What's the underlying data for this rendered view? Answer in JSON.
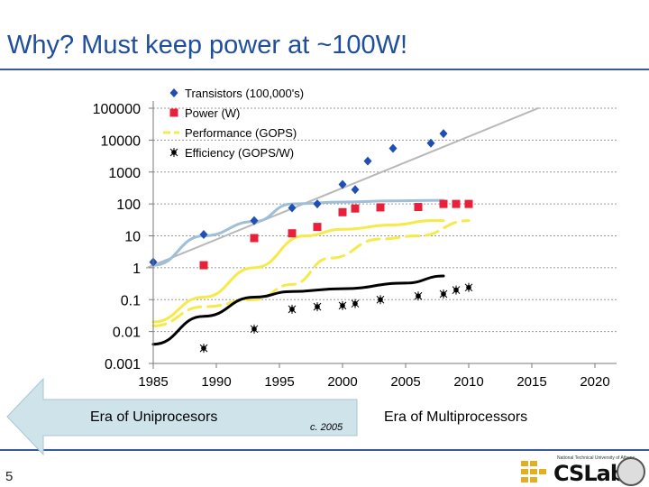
{
  "slide": {
    "title": "Why? Must keep power at ~100W!",
    "page_number": "5",
    "era_left": "Era of Uniprocesors",
    "era_right": "Era of Multiprocessors",
    "circa": "c. 2005",
    "logo_text": "CSLab",
    "logo_caption": "National Technical University of Athens"
  },
  "colors": {
    "title": "#1f4e9c",
    "transistors": "#1f4eb4",
    "power": "#e8203a",
    "performance": "#f5ea4a",
    "efficiency": "#000000",
    "trend_gray": "#b8b8b8",
    "trend_blue": "#9fbfd8",
    "arrow_fill": "#cfe3ea"
  },
  "chart_data": {
    "type": "scatter",
    "y_scale": "log",
    "ylim": [
      0.001,
      100000
    ],
    "xlim": [
      1985,
      2020
    ],
    "x_ticks": [
      "1985",
      "1990",
      "1995",
      "2000",
      "2005",
      "2010",
      "2015",
      "2020"
    ],
    "y_ticks": [
      "100000",
      "10000",
      "1000",
      "100",
      "10",
      "1",
      "0.1",
      "0.01",
      "0.001"
    ],
    "legend_position": "top-center",
    "series": [
      {
        "name": "Transistors (100,000's)",
        "marker": "diamond",
        "color": "#1f4eb4",
        "x": [
          1985,
          1989,
          1993,
          1996,
          1998,
          2000,
          2001,
          2002,
          2004,
          2007,
          2008
        ],
        "y": [
          1.5,
          11,
          30,
          75,
          100,
          410,
          280,
          2200,
          5500,
          8000,
          16000
        ]
      },
      {
        "name": "Power (W)",
        "marker": "square",
        "color": "#e8203a",
        "x": [
          1989,
          1993,
          1996,
          1998,
          2000,
          2001,
          2003,
          2006,
          2008,
          2009,
          2010
        ],
        "y": [
          1.2,
          8.5,
          12,
          19,
          55,
          72,
          78,
          80,
          100,
          100,
          100
        ]
      },
      {
        "name": "Performance (GOPS)",
        "marker": "line",
        "color": "#f5ea4a",
        "x": [],
        "y": []
      },
      {
        "name": "Efficiency (GOPS/W)",
        "marker": "star",
        "color": "#000000",
        "x": [
          1989,
          1993,
          1996,
          1998,
          2000,
          2001,
          2003,
          2006,
          2008,
          2009,
          2010
        ],
        "y": [
          0.003,
          0.012,
          0.05,
          0.06,
          0.065,
          0.075,
          0.1,
          0.13,
          0.15,
          0.2,
          0.24
        ]
      }
    ],
    "trend_lines": [
      {
        "color": "#b8b8b8",
        "width": 2,
        "x": [
          1984.5,
          2015.5
        ],
        "y": [
          1,
          100000
        ]
      },
      {
        "color": "#9fbfd8",
        "width": 3,
        "x": [
          1985,
          1989,
          1993,
          1996,
          2000,
          2004,
          2008
        ],
        "y": [
          1.2,
          10,
          28,
          100,
          115,
          125,
          130
        ]
      },
      {
        "color": "#f5ea4a",
        "width": 3,
        "x": [
          1985,
          1989,
          1993,
          1997,
          2000,
          2004,
          2007,
          2008
        ],
        "y": [
          0.02,
          0.12,
          1.0,
          10,
          16,
          22,
          30,
          30
        ]
      },
      {
        "color": "#f5ea4a",
        "width": 3,
        "dash": true,
        "x": [
          1985,
          1989,
          1993,
          1996,
          1999,
          2003,
          2006,
          2010
        ],
        "y": [
          0.015,
          0.06,
          0.1,
          0.3,
          2.0,
          8,
          10,
          30
        ]
      },
      {
        "color": "#000000",
        "width": 3,
        "x": [
          1985,
          1989,
          1993,
          1996,
          2000,
          2005,
          2008
        ],
        "y": [
          0.004,
          0.03,
          0.12,
          0.18,
          0.22,
          0.33,
          0.55
        ]
      }
    ]
  }
}
